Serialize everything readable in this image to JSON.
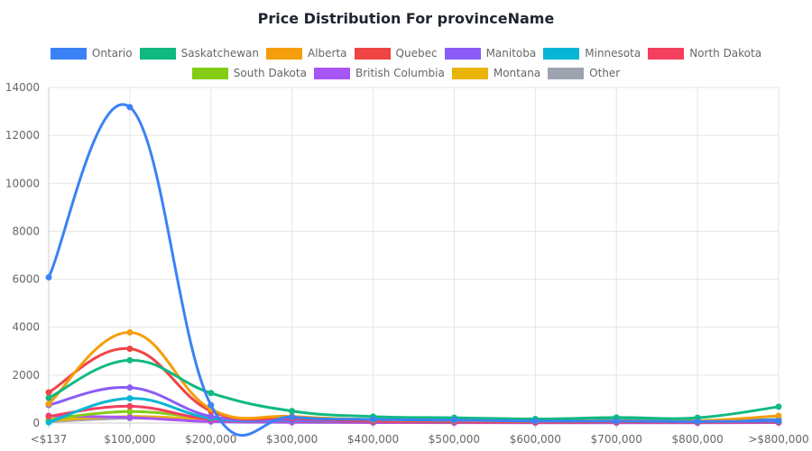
{
  "chart_data": {
    "type": "line",
    "title": "Price Distribution For provinceName",
    "xlabel": "",
    "ylabel": "",
    "categories": [
      "<$137",
      "$100,000",
      "$200,000",
      "$300,000",
      "$400,000",
      "$500,000",
      "$600,000",
      "$700,000",
      "$800,000",
      ">$800,000"
    ],
    "ylim": [
      0,
      14000
    ],
    "yticks": [
      0,
      2000,
      4000,
      6000,
      8000,
      10000,
      12000,
      14000
    ],
    "grid": true,
    "legend_position": "top",
    "series": [
      {
        "name": "Ontario",
        "color": "#3b82f6",
        "values": [
          6080,
          13180,
          750,
          250,
          150,
          120,
          80,
          80,
          60,
          80
        ]
      },
      {
        "name": "Saskatchewan",
        "color": "#10b981",
        "values": [
          1050,
          2620,
          1250,
          500,
          270,
          220,
          170,
          230,
          220,
          680
        ]
      },
      {
        "name": "Alberta",
        "color": "#f59e0b",
        "values": [
          800,
          3780,
          580,
          280,
          140,
          110,
          80,
          100,
          90,
          300
        ]
      },
      {
        "name": "Quebec",
        "color": "#ef4444",
        "values": [
          1280,
          3100,
          500,
          200,
          100,
          70,
          50,
          50,
          40,
          60
        ]
      },
      {
        "name": "Manitoba",
        "color": "#8b5cf6",
        "values": [
          750,
          1480,
          280,
          120,
          80,
          60,
          50,
          60,
          50,
          120
        ]
      },
      {
        "name": "Minnesota",
        "color": "#06b6d4",
        "values": [
          30,
          1030,
          200,
          100,
          80,
          60,
          60,
          120,
          100,
          150
        ]
      },
      {
        "name": "North Dakota",
        "color": "#f43f5e",
        "values": [
          280,
          700,
          150,
          80,
          50,
          40,
          30,
          40,
          30,
          40
        ]
      },
      {
        "name": "South Dakota",
        "color": "#84cc16",
        "values": [
          150,
          480,
          200,
          90,
          60,
          50,
          40,
          50,
          40,
          60
        ]
      },
      {
        "name": "British Columbia",
        "color": "#a855f7",
        "values": [
          300,
          230,
          60,
          30,
          20,
          15,
          10,
          10,
          10,
          20
        ]
      },
      {
        "name": "Montana",
        "color": "#eab308",
        "values": [
          100,
          270,
          150,
          80,
          50,
          40,
          30,
          40,
          30,
          50
        ]
      },
      {
        "name": "Other",
        "color": "#9ca3af",
        "values": [
          60,
          200,
          100,
          50,
          30,
          25,
          20,
          25,
          20,
          30
        ]
      }
    ]
  }
}
